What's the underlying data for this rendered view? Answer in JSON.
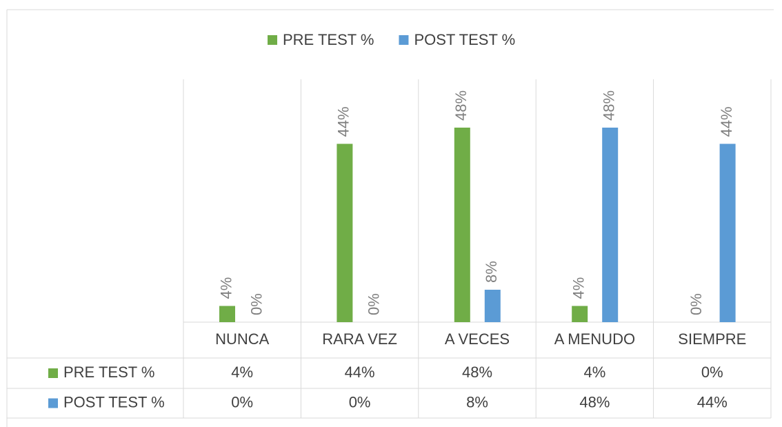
{
  "chart_data": {
    "type": "bar",
    "categories": [
      "NUNCA",
      "RARA VEZ",
      "A VECES",
      "A MENUDO",
      "SIEMPRE"
    ],
    "series": [
      {
        "name": "PRE TEST %",
        "color": "#70ad47",
        "values": [
          4,
          44,
          48,
          4,
          0
        ],
        "value_labels": [
          "4%",
          "44%",
          "48%",
          "4%",
          "0%"
        ]
      },
      {
        "name": "POST TEST %",
        "color": "#5b9bd5",
        "values": [
          0,
          0,
          8,
          48,
          44
        ],
        "value_labels": [
          "0%",
          "0%",
          "8%",
          "48%",
          "44%"
        ]
      }
    ],
    "legend": "top",
    "data_table": true
  }
}
